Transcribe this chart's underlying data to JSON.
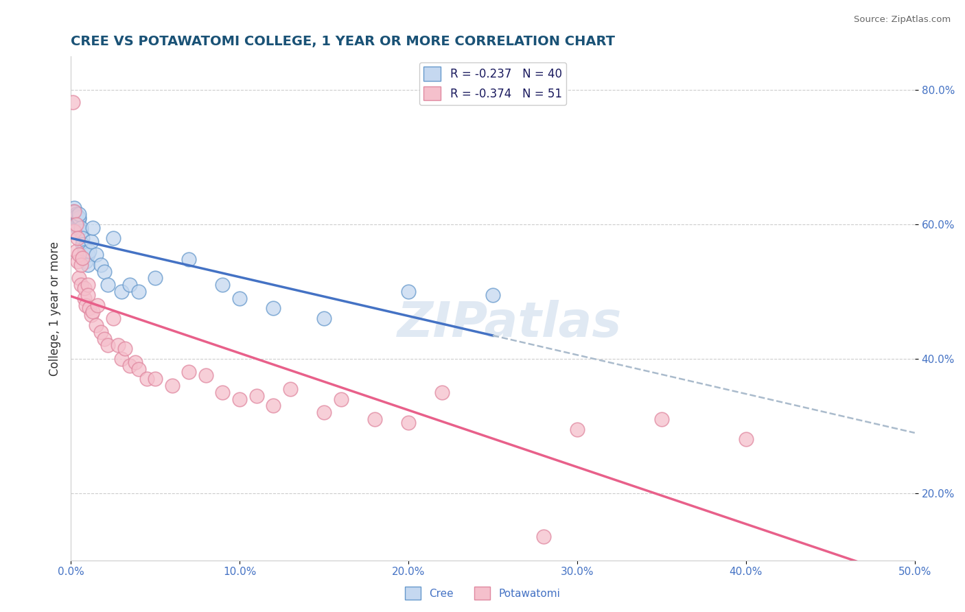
{
  "title": "CREE VS POTAWATOMI COLLEGE, 1 YEAR OR MORE CORRELATION CHART",
  "source_text": "Source: ZipAtlas.com",
  "ylabel": "College, 1 year or more",
  "xlim": [
    0.0,
    0.5
  ],
  "ylim": [
    0.1,
    0.85
  ],
  "cree_R": -0.237,
  "cree_N": 40,
  "potawatomi_R": -0.374,
  "potawatomi_N": 51,
  "cree_face_color": "#c5d8f0",
  "cree_edge_color": "#6699CC",
  "pota_face_color": "#f5c0cc",
  "pota_edge_color": "#E088A0",
  "cree_line_color": "#4472C4",
  "pota_line_color": "#E8608A",
  "dash_line_color": "#aabbcc",
  "watermark": "ZIPatlas",
  "background_color": "#ffffff",
  "grid_color": "#cccccc",
  "tick_color": "#4472C4",
  "title_color": "#1a5276",
  "cree_x": [
    0.001,
    0.002,
    0.002,
    0.003,
    0.003,
    0.003,
    0.004,
    0.004,
    0.004,
    0.005,
    0.005,
    0.005,
    0.006,
    0.006,
    0.007,
    0.007,
    0.008,
    0.008,
    0.009,
    0.01,
    0.01,
    0.011,
    0.012,
    0.013,
    0.015,
    0.018,
    0.02,
    0.022,
    0.025,
    0.03,
    0.035,
    0.04,
    0.05,
    0.07,
    0.09,
    0.1,
    0.12,
    0.15,
    0.2,
    0.25
  ],
  "cree_y": [
    0.62,
    0.625,
    0.618,
    0.615,
    0.61,
    0.612,
    0.605,
    0.6,
    0.595,
    0.608,
    0.61,
    0.615,
    0.59,
    0.595,
    0.58,
    0.57,
    0.565,
    0.558,
    0.545,
    0.555,
    0.54,
    0.56,
    0.575,
    0.595,
    0.555,
    0.54,
    0.53,
    0.51,
    0.58,
    0.5,
    0.51,
    0.5,
    0.52,
    0.548,
    0.51,
    0.49,
    0.475,
    0.46,
    0.5,
    0.495
  ],
  "pota_x": [
    0.001,
    0.002,
    0.002,
    0.003,
    0.003,
    0.004,
    0.004,
    0.005,
    0.005,
    0.006,
    0.006,
    0.007,
    0.008,
    0.008,
    0.009,
    0.01,
    0.01,
    0.011,
    0.012,
    0.013,
    0.015,
    0.016,
    0.018,
    0.02,
    0.022,
    0.025,
    0.028,
    0.03,
    0.032,
    0.035,
    0.038,
    0.04,
    0.045,
    0.05,
    0.06,
    0.07,
    0.08,
    0.09,
    0.1,
    0.11,
    0.12,
    0.13,
    0.15,
    0.16,
    0.18,
    0.2,
    0.22,
    0.3,
    0.35,
    0.4,
    0.28
  ],
  "pota_y": [
    0.782,
    0.59,
    0.62,
    0.6,
    0.56,
    0.58,
    0.545,
    0.555,
    0.52,
    0.54,
    0.51,
    0.55,
    0.49,
    0.505,
    0.48,
    0.51,
    0.495,
    0.475,
    0.465,
    0.47,
    0.45,
    0.48,
    0.44,
    0.43,
    0.42,
    0.46,
    0.42,
    0.4,
    0.415,
    0.39,
    0.395,
    0.385,
    0.37,
    0.37,
    0.36,
    0.38,
    0.375,
    0.35,
    0.34,
    0.345,
    0.33,
    0.355,
    0.32,
    0.34,
    0.31,
    0.305,
    0.35,
    0.295,
    0.31,
    0.28,
    0.135
  ]
}
